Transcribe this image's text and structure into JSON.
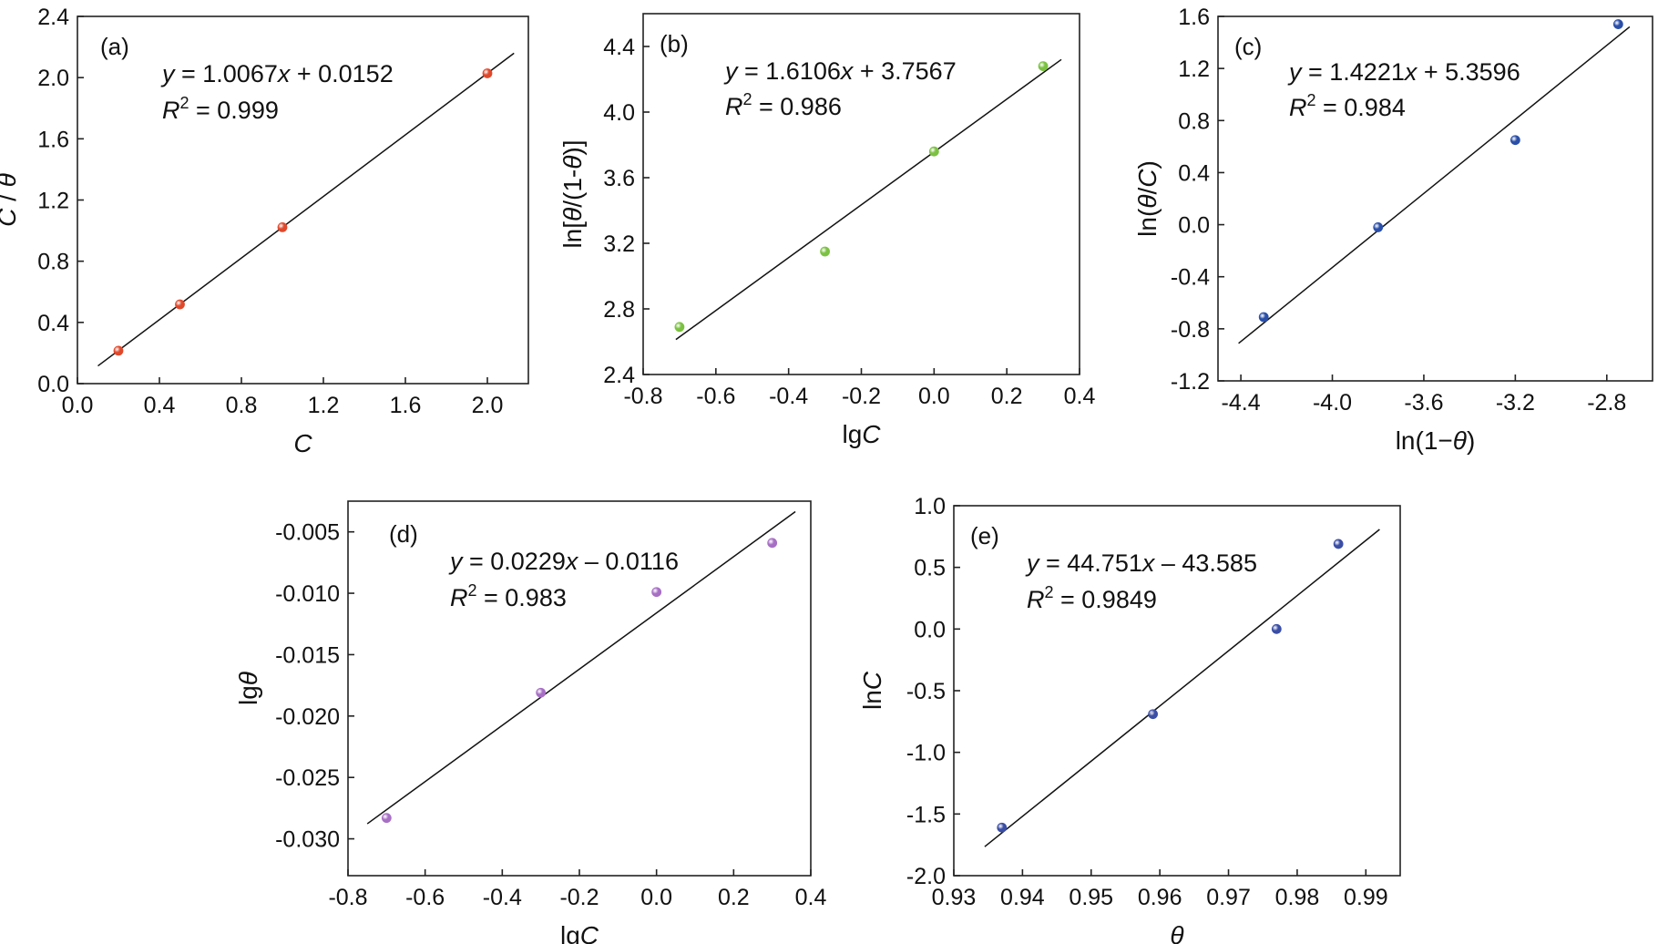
{
  "figure": {
    "chart_data": [
      {
        "panel_label": "(a)",
        "type": "scatter",
        "xlabel_parts": [
          {
            "t": "C",
            "i": true
          }
        ],
        "ylabel_parts": [
          {
            "t": "C",
            "i": true
          },
          {
            "t": " / ",
            "i": false
          },
          {
            "t": "θ",
            "i": true
          }
        ],
        "xlim": [
          0.0,
          2.2
        ],
        "ylim": [
          0.0,
          2.4
        ],
        "xticks": [
          "0.0",
          "0.4",
          "0.8",
          "1.2",
          "1.6",
          "2.0"
        ],
        "yticks": [
          "0.0",
          "0.4",
          "0.8",
          "1.2",
          "1.6",
          "2.0",
          "2.4"
        ],
        "points": [
          [
            0.2,
            0.215
          ],
          [
            0.5,
            0.518
          ],
          [
            1.0,
            1.022
          ],
          [
            2.0,
            2.028
          ]
        ],
        "fit": {
          "slope": 1.0067,
          "intercept": 0.0152,
          "x_range": [
            0.1,
            2.13
          ]
        },
        "equation_parts": [
          {
            "t": "y",
            "i": true
          },
          {
            "t": " = 1.0067",
            "i": false
          },
          {
            "t": "x",
            "i": true
          },
          {
            "t": " + 0.0152",
            "i": false
          }
        ],
        "r2_value": " = 0.999",
        "marker_color": "#e0482a",
        "grid": false
      },
      {
        "panel_label": "(b)",
        "type": "scatter",
        "xlabel_parts": [
          {
            "t": "lg",
            "i": false
          },
          {
            "t": "C",
            "i": true
          }
        ],
        "ylabel_parts": [
          {
            "t": "ln[",
            "i": false
          },
          {
            "t": "θ",
            "i": true
          },
          {
            "t": "/(1-",
            "i": false
          },
          {
            "t": "θ",
            "i": true
          },
          {
            "t": ")]",
            "i": false
          }
        ],
        "xlim": [
          -0.8,
          0.4
        ],
        "ylim": [
          2.4,
          4.6
        ],
        "xticks": [
          "-0.8",
          "-0.6",
          "-0.4",
          "-0.2",
          "0.0",
          "0.2",
          "0.4"
        ],
        "yticks": [
          "2.4",
          "2.8",
          "3.2",
          "3.6",
          "4.0",
          "4.4"
        ],
        "points": [
          [
            -0.7,
            2.69
          ],
          [
            -0.3,
            3.15
          ],
          [
            0.0,
            3.76
          ],
          [
            0.3,
            4.28
          ]
        ],
        "fit": {
          "slope": 1.6106,
          "intercept": 3.7567,
          "x_range": [
            -0.71,
            0.35
          ]
        },
        "equation_parts": [
          {
            "t": "y",
            "i": true
          },
          {
            "t": " = 1.6106",
            "i": false
          },
          {
            "t": "x",
            "i": true
          },
          {
            "t": " + 3.7567",
            "i": false
          }
        ],
        "r2_value": " = 0.986",
        "marker_color": "#7cc242",
        "grid": false
      },
      {
        "panel_label": "(c)",
        "type": "scatter",
        "xlabel_parts": [
          {
            "t": "ln(1−",
            "i": false
          },
          {
            "t": "θ",
            "i": true
          },
          {
            "t": ")",
            "i": false
          }
        ],
        "ylabel_parts": [
          {
            "t": "ln(",
            "i": false
          },
          {
            "t": "θ",
            "i": true
          },
          {
            "t": "/",
            "i": false
          },
          {
            "t": "C",
            "i": true
          },
          {
            "t": ")",
            "i": false
          }
        ],
        "xlim": [
          -4.5,
          -2.6
        ],
        "ylim": [
          -1.2,
          1.6
        ],
        "xticks": [
          "-4.4",
          "-4.0",
          "-3.6",
          "-3.2",
          "-2.8"
        ],
        "yticks": [
          "-1.2",
          "-0.8",
          "-0.4",
          "0.0",
          "0.4",
          "0.8",
          "1.2",
          "1.6"
        ],
        "points": [
          [
            -4.3,
            -0.71
          ],
          [
            -3.8,
            -0.02
          ],
          [
            -3.2,
            0.65
          ],
          [
            -2.75,
            1.54
          ]
        ],
        "fit": {
          "slope": 1.4221,
          "intercept": 5.3596,
          "x_range": [
            -4.41,
            -2.7
          ]
        },
        "equation_parts": [
          {
            "t": "y",
            "i": true
          },
          {
            "t": " = 1.4221",
            "i": false
          },
          {
            "t": "x",
            "i": true
          },
          {
            "t": " + 5.3596",
            "i": false
          }
        ],
        "r2_value": " = 0.984",
        "marker_color": "#2a4fa8",
        "grid": false
      },
      {
        "panel_label": "(d)",
        "type": "scatter",
        "xlabel_parts": [
          {
            "t": "lg",
            "i": false
          },
          {
            "t": "C",
            "i": true
          }
        ],
        "ylabel_parts": [
          {
            "t": "lg",
            "i": false
          },
          {
            "t": "θ",
            "i": true
          }
        ],
        "xlim": [
          -0.8,
          0.4
        ],
        "ylim": [
          -0.033,
          -0.0025
        ],
        "xticks": [
          "-0.8",
          "-0.6",
          "-0.4",
          "-0.2",
          "0.0",
          "0.2",
          "0.4"
        ],
        "yticks": [
          "-0.030",
          "-0.025",
          "-0.020",
          "-0.015",
          "-0.010",
          "-0.005"
        ],
        "points": [
          [
            -0.7,
            -0.0283
          ],
          [
            -0.3,
            -0.0181
          ],
          [
            0.0,
            -0.0099
          ],
          [
            0.3,
            -0.0059
          ]
        ],
        "fit": {
          "slope": 0.0229,
          "intercept": -0.0116,
          "x_range": [
            -0.75,
            0.36
          ]
        },
        "equation_parts": [
          {
            "t": "y",
            "i": true
          },
          {
            "t": " = 0.0229",
            "i": false
          },
          {
            "t": "x",
            "i": true
          },
          {
            "t": " – 0.0116",
            "i": false
          }
        ],
        "r2_value": " = 0.983",
        "marker_color": "#a76fc4",
        "grid": false
      },
      {
        "panel_label": "(e)",
        "type": "scatter",
        "xlabel_parts": [
          {
            "t": "θ",
            "i": true
          }
        ],
        "ylabel_parts": [
          {
            "t": "ln",
            "i": false
          },
          {
            "t": "C",
            "i": true
          }
        ],
        "xlim": [
          0.93,
          0.995
        ],
        "ylim": [
          -2.0,
          1.0
        ],
        "xticks": [
          "0.93",
          "0.94",
          "0.95",
          "0.96",
          "0.97",
          "0.98",
          "0.99"
        ],
        "yticks": [
          "-2.0",
          "-1.5",
          "-1.0",
          "-0.5",
          "0.0",
          "0.5",
          "1.0"
        ],
        "points": [
          [
            0.937,
            -1.61
          ],
          [
            0.959,
            -0.69
          ],
          [
            0.977,
            0.0
          ],
          [
            0.986,
            0.69
          ]
        ],
        "fit": {
          "slope": 44.751,
          "intercept": -43.585,
          "x_range": [
            0.9345,
            0.992
          ]
        },
        "equation_parts": [
          {
            "t": "y",
            "i": true
          },
          {
            "t": " = 44.751",
            "i": false
          },
          {
            "t": "x",
            "i": true
          },
          {
            "t": " – 43.585",
            "i": false
          }
        ],
        "r2_value": " = 0.9849",
        "marker_color": "#3a4ea5",
        "grid": false
      }
    ]
  }
}
